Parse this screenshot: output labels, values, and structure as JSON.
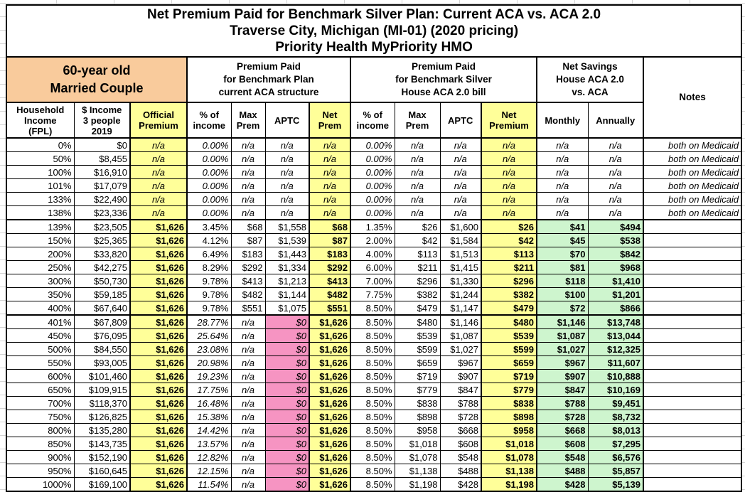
{
  "title": {
    "line1": "Net Premium Paid for Benchmark Silver Plan: Current ACA vs. ACA 2.0",
    "line2": "Traverse City, Michigan (MI-01) (2020 pricing)",
    "line3": "Priority Health MyPriority HMO"
  },
  "groups": {
    "household": "60-year old\nMarried Couple",
    "aca": "Premium Paid\nfor Benchmark Plan\ncurrent ACA structure",
    "aca2": "Premium Paid\nfor Benchmark Silver\nHouse ACA 2.0 bill",
    "savings": "Net Savings\nHouse ACA 2.0\nvs. ACA",
    "notes": "Notes"
  },
  "columns": [
    {
      "key": "fpl",
      "label": "Household\nIncome\n(FPL)"
    },
    {
      "key": "income",
      "label": "$ Income\n3 people\n2019"
    },
    {
      "key": "official-premium",
      "label": "Official\nPremium"
    },
    {
      "key": "aca-pct-income",
      "label": "% of\nincome"
    },
    {
      "key": "aca-max-prem",
      "label": "Max\nPrem"
    },
    {
      "key": "aca-aptc",
      "label": "APTC"
    },
    {
      "key": "aca-net-prem",
      "label": "Net\nPrem"
    },
    {
      "key": "aca2-pct-income",
      "label": "% of\nincome"
    },
    {
      "key": "aca2-max-prem",
      "label": "Max\nPrem"
    },
    {
      "key": "aca2-aptc",
      "label": "APTC"
    },
    {
      "key": "aca2-net-premium",
      "label": "Net\nPremium"
    },
    {
      "key": "savings-monthly",
      "label": "Monthly"
    },
    {
      "key": "savings-annually",
      "label": "Annually"
    },
    {
      "key": "notes",
      "label": ""
    }
  ],
  "rows": [
    {
      "type": "medicaid",
      "cells": [
        "0%",
        "$0",
        "n/a",
        "0.00%",
        "n/a",
        "n/a",
        "n/a",
        "0.00%",
        "n/a",
        "n/a",
        "n/a",
        "n/a",
        "n/a",
        "both on Medicaid"
      ]
    },
    {
      "type": "medicaid",
      "cells": [
        "50%",
        "$8,455",
        "n/a",
        "0.00%",
        "n/a",
        "n/a",
        "n/a",
        "0.00%",
        "n/a",
        "n/a",
        "n/a",
        "n/a",
        "n/a",
        "both on Medicaid"
      ]
    },
    {
      "type": "medicaid",
      "cells": [
        "100%",
        "$16,910",
        "n/a",
        "0.00%",
        "n/a",
        "n/a",
        "n/a",
        "0.00%",
        "n/a",
        "n/a",
        "n/a",
        "n/a",
        "n/a",
        "both on Medicaid"
      ]
    },
    {
      "type": "medicaid",
      "cells": [
        "101%",
        "$17,079",
        "n/a",
        "0.00%",
        "n/a",
        "n/a",
        "n/a",
        "0.00%",
        "n/a",
        "n/a",
        "n/a",
        "n/a",
        "n/a",
        "both on Medicaid"
      ]
    },
    {
      "type": "medicaid",
      "cells": [
        "133%",
        "$22,490",
        "n/a",
        "0.00%",
        "n/a",
        "n/a",
        "n/a",
        "0.00%",
        "n/a",
        "n/a",
        "n/a",
        "n/a",
        "n/a",
        "both on Medicaid"
      ]
    },
    {
      "type": "medicaid",
      "cells": [
        "138%",
        "$23,336",
        "n/a",
        "0.00%",
        "n/a",
        "n/a",
        "n/a",
        "0.00%",
        "n/a",
        "n/a",
        "n/a",
        "n/a",
        "n/a",
        "both on Medicaid"
      ]
    },
    {
      "type": "subsidy",
      "cells": [
        "139%",
        "$23,505",
        "$1,626",
        "3.45%",
        "$68",
        "$1,558",
        "$68",
        "1.35%",
        "$26",
        "$1,600",
        "$26",
        "$41",
        "$494",
        ""
      ]
    },
    {
      "type": "subsidy",
      "cells": [
        "150%",
        "$25,365",
        "$1,626",
        "4.12%",
        "$87",
        "$1,539",
        "$87",
        "2.00%",
        "$42",
        "$1,584",
        "$42",
        "$45",
        "$538",
        ""
      ]
    },
    {
      "type": "subsidy",
      "cells": [
        "200%",
        "$33,820",
        "$1,626",
        "6.49%",
        "$183",
        "$1,443",
        "$183",
        "4.00%",
        "$113",
        "$1,513",
        "$113",
        "$70",
        "$842",
        ""
      ]
    },
    {
      "type": "subsidy",
      "cells": [
        "250%",
        "$42,275",
        "$1,626",
        "8.29%",
        "$292",
        "$1,334",
        "$292",
        "6.00%",
        "$211",
        "$1,415",
        "$211",
        "$81",
        "$968",
        ""
      ]
    },
    {
      "type": "subsidy",
      "cells": [
        "300%",
        "$50,730",
        "$1,626",
        "9.78%",
        "$413",
        "$1,213",
        "$413",
        "7.00%",
        "$296",
        "$1,330",
        "$296",
        "$118",
        "$1,410",
        ""
      ]
    },
    {
      "type": "subsidy",
      "cells": [
        "350%",
        "$59,185",
        "$1,626",
        "9.78%",
        "$482",
        "$1,144",
        "$482",
        "7.75%",
        "$382",
        "$1,244",
        "$382",
        "$100",
        "$1,201",
        ""
      ]
    },
    {
      "type": "subsidy",
      "cells": [
        "400%",
        "$67,640",
        "$1,626",
        "9.78%",
        "$551",
        "$1,075",
        "$551",
        "8.50%",
        "$479",
        "$1,147",
        "$479",
        "$72",
        "$866",
        ""
      ]
    },
    {
      "type": "nosub",
      "cells": [
        "401%",
        "$67,809",
        "$1,626",
        "28.77%",
        "n/a",
        "$0",
        "$1,626",
        "8.50%",
        "$480",
        "$1,146",
        "$480",
        "$1,146",
        "$13,748",
        ""
      ]
    },
    {
      "type": "nosub",
      "cells": [
        "450%",
        "$76,095",
        "$1,626",
        "25.64%",
        "n/a",
        "$0",
        "$1,626",
        "8.50%",
        "$539",
        "$1,087",
        "$539",
        "$1,087",
        "$13,044",
        ""
      ]
    },
    {
      "type": "nosub",
      "cells": [
        "500%",
        "$84,550",
        "$1,626",
        "23.08%",
        "n/a",
        "$0",
        "$1,626",
        "8.50%",
        "$599",
        "$1,027",
        "$599",
        "$1,027",
        "$12,325",
        ""
      ]
    },
    {
      "type": "nosub",
      "cells": [
        "550%",
        "$93,005",
        "$1,626",
        "20.98%",
        "n/a",
        "$0",
        "$1,626",
        "8.50%",
        "$659",
        "$967",
        "$659",
        "$967",
        "$11,607",
        ""
      ]
    },
    {
      "type": "nosub",
      "cells": [
        "600%",
        "$101,460",
        "$1,626",
        "19.23%",
        "n/a",
        "$0",
        "$1,626",
        "8.50%",
        "$719",
        "$907",
        "$719",
        "$907",
        "$10,888",
        ""
      ]
    },
    {
      "type": "nosub",
      "cells": [
        "650%",
        "$109,915",
        "$1,626",
        "17.75%",
        "n/a",
        "$0",
        "$1,626",
        "8.50%",
        "$779",
        "$847",
        "$779",
        "$847",
        "$10,169",
        ""
      ]
    },
    {
      "type": "nosub",
      "cells": [
        "700%",
        "$118,370",
        "$1,626",
        "16.48%",
        "n/a",
        "$0",
        "$1,626",
        "8.50%",
        "$838",
        "$788",
        "$838",
        "$788",
        "$9,451",
        ""
      ]
    },
    {
      "type": "nosub",
      "cells": [
        "750%",
        "$126,825",
        "$1,626",
        "15.38%",
        "n/a",
        "$0",
        "$1,626",
        "8.50%",
        "$898",
        "$728",
        "$898",
        "$728",
        "$8,732",
        ""
      ]
    },
    {
      "type": "nosub",
      "cells": [
        "800%",
        "$135,280",
        "$1,626",
        "14.42%",
        "n/a",
        "$0",
        "$1,626",
        "8.50%",
        "$958",
        "$668",
        "$958",
        "$668",
        "$8,013",
        ""
      ]
    },
    {
      "type": "nosub",
      "cells": [
        "850%",
        "$143,735",
        "$1,626",
        "13.57%",
        "n/a",
        "$0",
        "$1,626",
        "8.50%",
        "$1,018",
        "$608",
        "$1,018",
        "$608",
        "$7,295",
        ""
      ]
    },
    {
      "type": "nosub",
      "cells": [
        "900%",
        "$152,190",
        "$1,626",
        "12.82%",
        "n/a",
        "$0",
        "$1,626",
        "8.50%",
        "$1,078",
        "$548",
        "$1,078",
        "$548",
        "$6,576",
        ""
      ]
    },
    {
      "type": "nosub",
      "cells": [
        "950%",
        "$160,645",
        "$1,626",
        "12.15%",
        "n/a",
        "$0",
        "$1,626",
        "8.50%",
        "$1,138",
        "$488",
        "$1,138",
        "$488",
        "$5,857",
        ""
      ]
    },
    {
      "type": "nosub",
      "cells": [
        "1000%",
        "$169,100",
        "$1,626",
        "11.54%",
        "n/a",
        "$0",
        "$1,626",
        "8.50%",
        "$1,198",
        "$428",
        "$1,198",
        "$428",
        "$5,139",
        ""
      ]
    }
  ],
  "colors": {
    "group_header_orange": "#f9cb9c",
    "highlight_yellow": "#ffff99",
    "savings_green": "#cef5ce",
    "zero_aptc_pink": "#f694c2",
    "border_black": "#000000",
    "gridline_gray": "#d4d4d4"
  }
}
